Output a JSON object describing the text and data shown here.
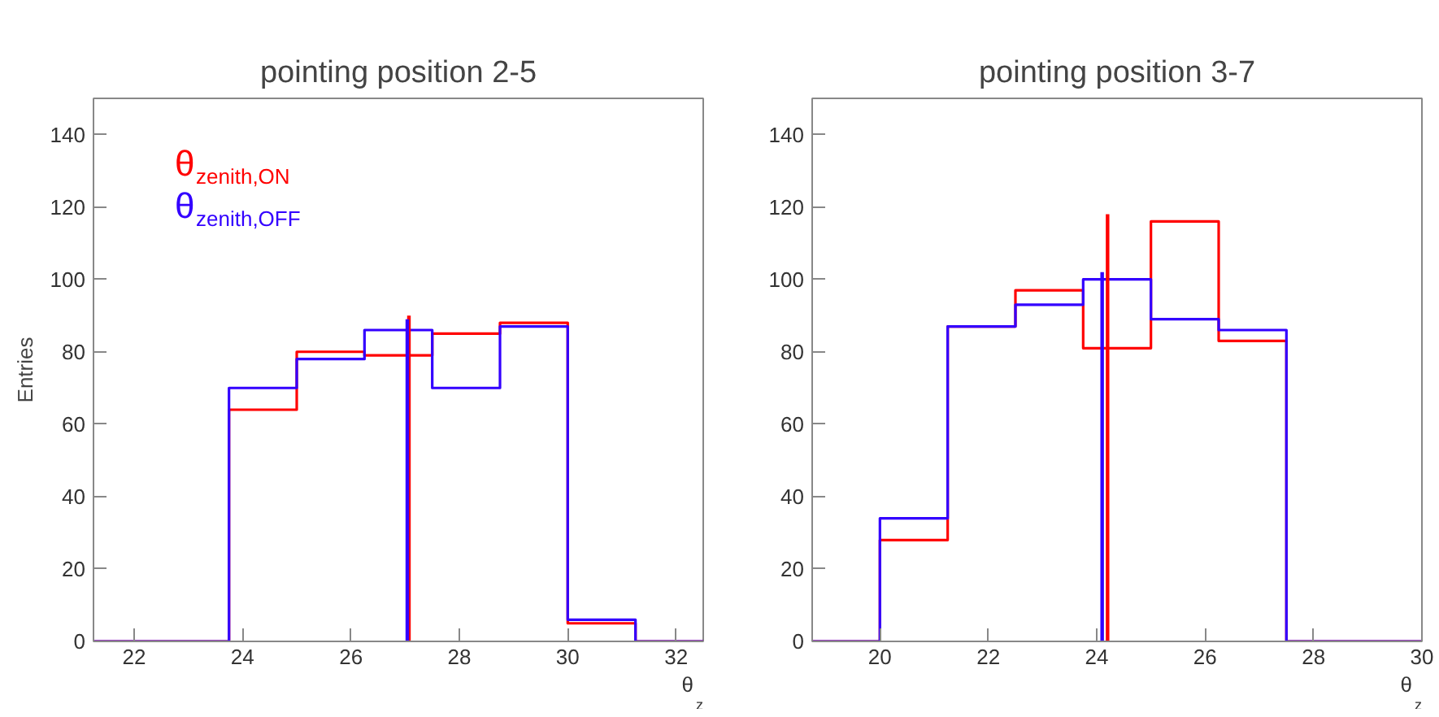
{
  "chart_data": [
    {
      "type": "histogram",
      "title": "pointing position 2-5",
      "xlabel": "θ$_{z}$",
      "ylabel": "Entries",
      "bins": [
        21.25,
        22.5,
        23.75,
        25,
        26.25,
        27.5,
        28.75,
        30,
        31.25,
        32.5
      ],
      "series": [
        {
          "name": "θ$_{zenith,ON}$",
          "color": "#ff0000",
          "values": [
            0,
            0,
            64,
            80,
            79,
            85,
            88,
            5,
            0
          ]
        },
        {
          "name": "θ$_{zenith,OFF}$",
          "color": "#3300ff",
          "values": [
            0,
            0,
            70,
            78,
            86,
            70,
            87,
            6,
            0
          ]
        },
        {
          "type": "line",
          "color": "#ff0000",
          "x": [
            27.07,
            27.07
          ],
          "values": [
            0,
            90
          ]
        },
        {
          "type": "line",
          "color": "#3300ff",
          "x": [
            27.04,
            27.04
          ],
          "values": [
            0,
            89
          ]
        }
      ],
      "xlim": [
        21.25,
        32.5
      ],
      "ylim": [
        0,
        150
      ],
      "xticks": [
        22,
        24,
        26,
        28,
        30,
        32
      ],
      "yticks": [
        0,
        20,
        40,
        60,
        80,
        100,
        120,
        140
      ],
      "legend": "top left",
      "grid": false
    },
    {
      "type": "histogram",
      "title": "pointing position 3-7",
      "xlabel": "θ$_{z}$",
      "bins": [
        18.75,
        20,
        21.25,
        22.5,
        23.75,
        25,
        26.25,
        27.5,
        28.75,
        30
      ],
      "series": [
        {
          "color": "#ff0000",
          "values": [
            0,
            28,
            87,
            97,
            81,
            116,
            83,
            0,
            0
          ]
        },
        {
          "color": "#3300ff",
          "values": [
            0,
            34,
            87,
            93,
            100,
            89,
            86,
            0,
            0
          ]
        },
        {
          "type": "line",
          "color": "#ff0000",
          "x": [
            24.2,
            24.2
          ],
          "values": [
            0,
            118
          ]
        },
        {
          "type": "line",
          "color": "#3300ff",
          "x": [
            24.1,
            24.1
          ],
          "values": [
            0,
            102
          ]
        }
      ],
      "xlim": [
        18.75,
        30
      ],
      "ylim": [
        0,
        150
      ],
      "xticks": [
        20,
        22,
        24,
        26,
        28,
        30
      ],
      "yticks": [
        0,
        20,
        40,
        60,
        80,
        100,
        120,
        140
      ],
      "grid": false
    }
  ]
}
